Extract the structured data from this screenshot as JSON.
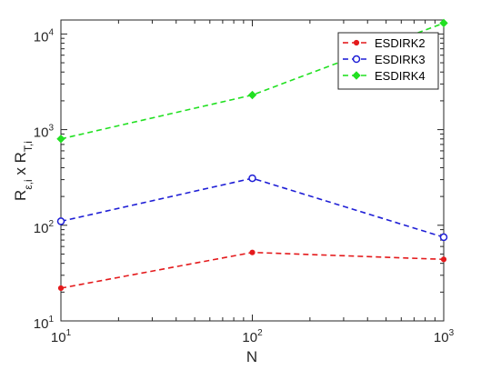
{
  "chart_data": {
    "type": "line",
    "xscale": "log",
    "yscale": "log",
    "xlabel": "N",
    "ylabel_main": "R",
    "ylabel_sub1": "ε,i",
    "ylabel_x": " x ",
    "ylabel_sub2": "T,i",
    "xlim": [
      10,
      1000
    ],
    "ylim": [
      10,
      14000
    ],
    "x": [
      10,
      100,
      1000
    ],
    "x_ticks": [
      {
        "base": "10",
        "exp": "1",
        "value": 10
      },
      {
        "base": "10",
        "exp": "2",
        "value": 100
      },
      {
        "base": "10",
        "exp": "3",
        "value": 1000
      }
    ],
    "y_ticks": [
      {
        "base": "10",
        "exp": "1",
        "value": 10
      },
      {
        "base": "10",
        "exp": "2",
        "value": 100
      },
      {
        "base": "10",
        "exp": "3",
        "value": 1000
      },
      {
        "base": "10",
        "exp": "4",
        "value": 10000
      }
    ],
    "grid": false,
    "legend_position": "top-right",
    "series": [
      {
        "name": "ESDIRK2",
        "values": [
          22,
          52,
          44
        ],
        "color": "#e41a1c",
        "marker": "filled-circle"
      },
      {
        "name": "ESDIRK3",
        "values": [
          110,
          310,
          75
        ],
        "color": "#1f1fd6",
        "marker": "open-circle"
      },
      {
        "name": "ESDIRK4",
        "values": [
          800,
          2300,
          13000
        ],
        "color": "#22e022",
        "marker": "diamond"
      }
    ]
  }
}
